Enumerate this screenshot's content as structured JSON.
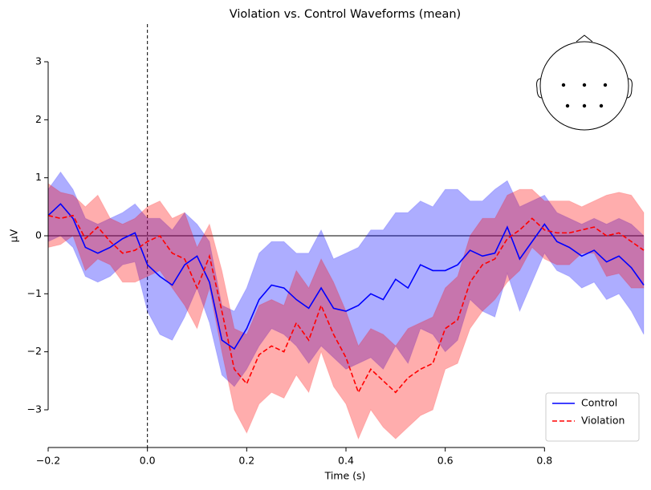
{
  "chart_data": {
    "type": "line",
    "title": "Violation vs. Control Waveforms (mean)",
    "xlabel": "Time (s)",
    "ylabel": "µV",
    "xlim": [
      -0.2,
      1.0
    ],
    "ylim": [
      -3.65,
      3.65
    ],
    "xticks": [
      {
        "value": -0.2,
        "label": "−0.2"
      },
      {
        "value": 0,
        "label": "0.0"
      },
      0.2,
      0.4,
      0.6,
      0.8
    ],
    "yticks": [
      {
        "value": -3,
        "label": "−3"
      },
      {
        "value": -2,
        "label": "−2"
      },
      {
        "value": -1,
        "label": "−1"
      },
      0,
      1,
      2,
      3
    ],
    "legend": "lower right",
    "x": [
      -0.2,
      -0.175,
      -0.15,
      -0.125,
      -0.1,
      -0.075,
      -0.05,
      -0.025,
      0,
      0.025,
      0.05,
      0.075,
      0.1,
      0.125,
      0.15,
      0.175,
      0.2,
      0.225,
      0.25,
      0.275,
      0.3,
      0.325,
      0.35,
      0.375,
      0.4,
      0.425,
      0.45,
      0.475,
      0.5,
      0.525,
      0.55,
      0.575,
      0.6,
      0.625,
      0.65,
      0.675,
      0.7,
      0.725,
      0.75,
      0.775,
      0.8,
      0.825,
      0.85,
      0.875,
      0.9,
      0.925,
      0.95,
      0.975,
      1.0
    ],
    "series": [
      {
        "name": "Control",
        "color": "#0000ff",
        "dash": false,
        "values": [
          0.35,
          0.55,
          0.3,
          -0.2,
          -0.3,
          -0.2,
          -0.05,
          0.05,
          -0.5,
          -0.7,
          -0.85,
          -0.5,
          -0.35,
          -0.8,
          -1.8,
          -1.95,
          -1.6,
          -1.1,
          -0.85,
          -0.9,
          -1.1,
          -1.25,
          -0.9,
          -1.25,
          -1.3,
          -1.2,
          -1.0,
          -1.1,
          -0.75,
          -0.9,
          -0.5,
          -0.6,
          -0.6,
          -0.5,
          -0.25,
          -0.35,
          -0.3,
          0.15,
          -0.4,
          -0.1,
          0.2,
          -0.1,
          -0.2,
          -0.35,
          -0.25,
          -0.45,
          -0.35,
          -0.55,
          -0.85
        ],
        "upper": [
          0.8,
          1.1,
          0.8,
          0.3,
          0.2,
          0.3,
          0.4,
          0.55,
          0.3,
          0.3,
          0.1,
          0.4,
          0.2,
          -0.1,
          -1.2,
          -1.3,
          -0.9,
          -0.3,
          -0.1,
          -0.1,
          -0.3,
          -0.3,
          0.1,
          -0.4,
          -0.3,
          -0.2,
          0.1,
          0.1,
          0.4,
          0.4,
          0.6,
          0.5,
          0.8,
          0.8,
          0.6,
          0.6,
          0.8,
          0.95,
          0.5,
          0.6,
          0.7,
          0.4,
          0.3,
          0.2,
          0.3,
          0.2,
          0.3,
          0.2,
          0.0
        ],
        "lower": [
          -0.1,
          0.0,
          -0.2,
          -0.7,
          -0.8,
          -0.7,
          -0.5,
          -0.45,
          -1.3,
          -1.7,
          -1.8,
          -1.4,
          -0.9,
          -1.5,
          -2.4,
          -2.6,
          -2.3,
          -1.9,
          -1.6,
          -1.7,
          -1.9,
          -2.2,
          -1.9,
          -2.1,
          -2.3,
          -2.2,
          -2.1,
          -2.3,
          -1.9,
          -2.2,
          -1.6,
          -1.7,
          -2.0,
          -1.8,
          -1.1,
          -1.3,
          -1.4,
          -0.65,
          -1.3,
          -0.8,
          -0.3,
          -0.6,
          -0.7,
          -0.9,
          -0.8,
          -1.1,
          -1.0,
          -1.3,
          -1.7
        ]
      },
      {
        "name": "Violation",
        "color": "#ff0000",
        "dash": true,
        "values": [
          0.35,
          0.3,
          0.35,
          -0.05,
          0.15,
          -0.1,
          -0.3,
          -0.25,
          -0.1,
          0.0,
          -0.3,
          -0.4,
          -0.9,
          -0.35,
          -1.3,
          -2.3,
          -2.55,
          -2.05,
          -1.9,
          -2.0,
          -1.5,
          -1.8,
          -1.2,
          -1.7,
          -2.1,
          -2.7,
          -2.3,
          -2.5,
          -2.7,
          -2.45,
          -2.3,
          -2.2,
          -1.6,
          -1.45,
          -0.8,
          -0.5,
          -0.4,
          -0.05,
          0.1,
          0.3,
          0.1,
          0.05,
          0.05,
          0.1,
          0.15,
          0.0,
          0.05,
          -0.1,
          -0.25
        ],
        "upper": [
          0.9,
          0.75,
          0.7,
          0.5,
          0.7,
          0.3,
          0.2,
          0.3,
          0.5,
          0.6,
          0.3,
          0.4,
          -0.2,
          0.2,
          -0.6,
          -1.6,
          -1.7,
          -1.2,
          -1.1,
          -1.2,
          -0.6,
          -0.9,
          -0.4,
          -0.8,
          -1.3,
          -1.9,
          -1.6,
          -1.7,
          -1.9,
          -1.6,
          -1.5,
          -1.4,
          -0.9,
          -0.7,
          0.0,
          0.3,
          0.3,
          0.7,
          0.8,
          0.8,
          0.6,
          0.6,
          0.6,
          0.5,
          0.6,
          0.7,
          0.75,
          0.7,
          0.4
        ],
        "lower": [
          -0.2,
          -0.15,
          0.0,
          -0.6,
          -0.4,
          -0.5,
          -0.8,
          -0.8,
          -0.7,
          -0.6,
          -0.9,
          -1.2,
          -1.6,
          -0.9,
          -2.0,
          -3.0,
          -3.4,
          -2.9,
          -2.7,
          -2.8,
          -2.4,
          -2.7,
          -2.0,
          -2.6,
          -2.9,
          -3.5,
          -3.0,
          -3.3,
          -3.5,
          -3.3,
          -3.1,
          -3.0,
          -2.3,
          -2.2,
          -1.6,
          -1.3,
          -1.1,
          -0.8,
          -0.6,
          -0.2,
          -0.4,
          -0.5,
          -0.5,
          -0.3,
          -0.3,
          -0.7,
          -0.65,
          -0.9,
          -0.9
        ]
      }
    ]
  }
}
